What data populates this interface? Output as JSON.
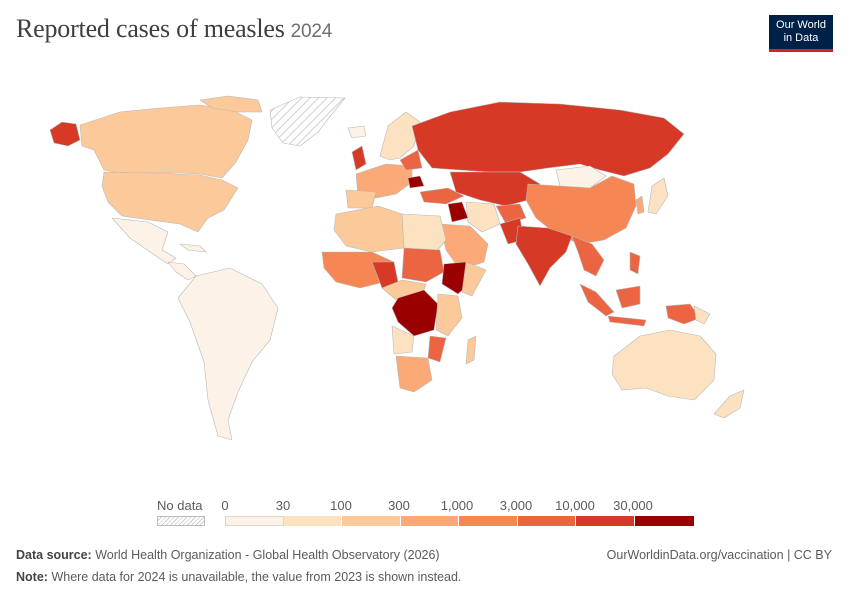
{
  "title": "Reported cases of measles",
  "year": "2024",
  "logo": {
    "line1": "Our World",
    "line2": "in Data"
  },
  "legend": {
    "no_data_label": "No data",
    "ticks": [
      "0",
      "30",
      "100",
      "300",
      "1,000",
      "3,000",
      "10,000",
      "30,000"
    ],
    "colors": [
      "#fdf2e7",
      "#fde2c2",
      "#fcc99a",
      "#fbaa77",
      "#f78655",
      "#ec6543",
      "#d63a27",
      "#9b0000"
    ]
  },
  "footer": {
    "source_label": "Data source:",
    "source_text": "World Health Organization - Global Health Observatory (2026)",
    "note_label": "Note:",
    "note_text": "Where data for 2024 is unavailable, the value from 2023 is shown instead.",
    "url": "OurWorldinData.org/vaccination | CC BY"
  }
}
